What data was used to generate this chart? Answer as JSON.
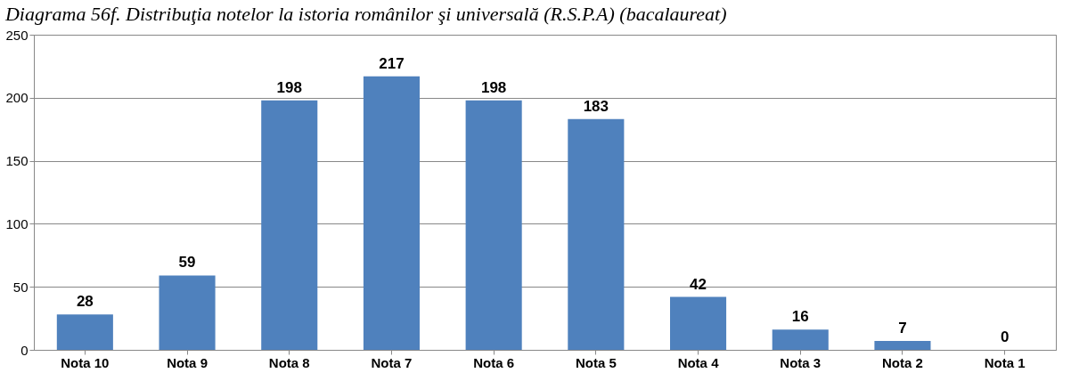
{
  "chart_data": {
    "type": "bar",
    "title": "Diagrama 56f. Distribuţia notelor la istoria românilor şi universală (R.S.P.A) (bacalaureat)",
    "categories": [
      "Nota 10",
      "Nota 9",
      "Nota 8",
      "Nota 7",
      "Nota 6",
      "Nota 5",
      "Nota 4",
      "Nota 3",
      "Nota 2",
      "Nota 1"
    ],
    "values": [
      28,
      59,
      198,
      217,
      198,
      183,
      42,
      16,
      7,
      0
    ],
    "color": "#4f81bd",
    "ylim": [
      0,
      250
    ],
    "yticks": [
      0,
      50,
      100,
      150,
      200,
      250
    ],
    "grid": "y",
    "data_labels": true
  }
}
